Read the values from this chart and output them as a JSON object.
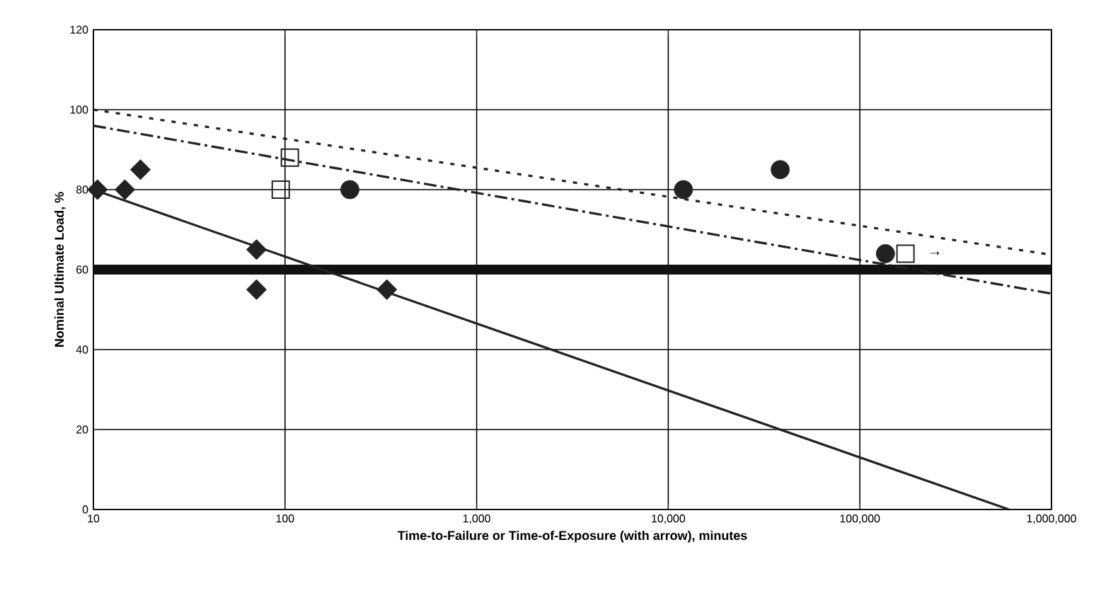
{
  "chart_data": {
    "type": "scatter",
    "xlabel": "Time-to-Failure or Time-of-Exposure (with arrow), minutes",
    "ylabel": "Nominal Ultimate Load, %",
    "log": "x",
    "grid": true,
    "xlim": [
      10,
      1000000
    ],
    "ylim": [
      0,
      120
    ],
    "xticks": [
      10,
      100,
      {
        "value": 1000,
        "label": "1,000"
      },
      {
        "value": 10000,
        "label": "10,000"
      },
      {
        "value": 100000,
        "label": "100,000"
      },
      {
        "value": 1000000,
        "label": "1,000,000"
      }
    ],
    "yticks": [
      0,
      20,
      40,
      60,
      80,
      100,
      120
    ],
    "series": [
      {
        "marker": "diamond",
        "color": "#222222",
        "x": [
          10.5,
          14.6,
          17.6,
          71,
          71,
          340
        ],
        "values": [
          80,
          80,
          85,
          65,
          55,
          55
        ]
      },
      {
        "marker": "square",
        "color": "#222222",
        "x": [
          106,
          95,
          173000
        ],
        "values": [
          88,
          80,
          64
        ]
      },
      {
        "marker": "circle",
        "color": "#222222",
        "x": [
          218,
          12000,
          38400,
          136000
        ],
        "values": [
          80,
          80,
          85,
          64
        ]
      },
      {
        "type": "line",
        "marker": "none",
        "line_style": "solid",
        "color": "#222222",
        "x": [
          10,
          600000
        ],
        "values": [
          80,
          0
        ]
      },
      {
        "type": "line",
        "marker": "none",
        "line_style": "dotted",
        "color": "#222222",
        "x": [
          10,
          1000000
        ],
        "values": [
          100,
          63.7
        ]
      },
      {
        "type": "line",
        "marker": "none",
        "line_style": "dashed",
        "color": "#222222",
        "x": [
          10,
          1000000
        ],
        "values": [
          96,
          54
        ]
      }
    ],
    "ref_lines": [
      {
        "axis": "y",
        "value": 60,
        "color": "#111111",
        "line_style": "solid"
      }
    ],
    "annotations": [
      {
        "text": "→",
        "x": 173000,
        "y": 64
      }
    ]
  }
}
